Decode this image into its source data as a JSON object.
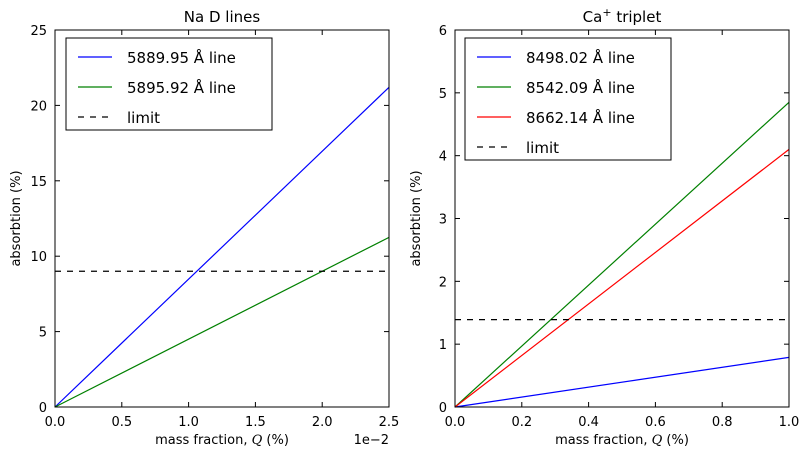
{
  "chart_data": [
    {
      "type": "line",
      "title": "Na D lines",
      "xlabel": "mass fraction, Q (%)",
      "xlabel_parts": {
        "pre": "mass fraction, ",
        "var": "Q",
        "post": " (%)"
      },
      "ylabel": "absorbtion (%)",
      "xlim": [
        0,
        0.025
      ],
      "ylim": [
        0,
        25
      ],
      "x_scale_label": "1e−2",
      "x_ticks": [
        0,
        0.005,
        0.01,
        0.015,
        0.02,
        0.025
      ],
      "x_tick_labels": [
        "0.0",
        "0.5",
        "1.0",
        "1.5",
        "2.0",
        "2.5"
      ],
      "y_ticks": [
        0,
        5,
        10,
        15,
        20,
        25
      ],
      "y_tick_labels": [
        "0",
        "5",
        "10",
        "15",
        "20",
        "25"
      ],
      "legend_position": "top-left",
      "series": [
        {
          "name": "5889.95 Å line",
          "color": "#0000ff",
          "style": "solid",
          "x": [
            0,
            0.025
          ],
          "y": [
            0,
            21.2
          ]
        },
        {
          "name": "5895.92 Å line",
          "color": "#008000",
          "style": "solid",
          "x": [
            0,
            0.025
          ],
          "y": [
            0,
            11.25
          ]
        },
        {
          "name": "limit",
          "color": "#000000",
          "style": "dashed",
          "x": [
            0,
            0.025
          ],
          "y": [
            9,
            9
          ]
        }
      ]
    },
    {
      "type": "line",
      "title": "Ca⁺ triplet",
      "title_parts": {
        "base": "Ca",
        "sup": "+",
        "rest": " triplet"
      },
      "xlabel": "mass fraction, Q (%)",
      "xlabel_parts": {
        "pre": "mass fraction, ",
        "var": "Q",
        "post": " (%)"
      },
      "ylabel": "absorbtion (%)",
      "xlim": [
        0,
        1
      ],
      "ylim": [
        0,
        6
      ],
      "x_ticks": [
        0,
        0.2,
        0.4,
        0.6,
        0.8,
        1.0
      ],
      "x_tick_labels": [
        "0.0",
        "0.2",
        "0.4",
        "0.6",
        "0.8",
        "1.0"
      ],
      "y_ticks": [
        0,
        1,
        2,
        3,
        4,
        5,
        6
      ],
      "y_tick_labels": [
        "0",
        "1",
        "2",
        "3",
        "4",
        "5",
        "6"
      ],
      "legend_position": "top-left",
      "series": [
        {
          "name": "8498.02 Å line",
          "color": "#0000ff",
          "style": "solid",
          "x": [
            0,
            1
          ],
          "y": [
            0,
            0.79
          ]
        },
        {
          "name": "8542.09 Å line",
          "color": "#008000",
          "style": "solid",
          "x": [
            0,
            1
          ],
          "y": [
            0,
            4.85
          ]
        },
        {
          "name": "8662.14 Å line",
          "color": "#ff0000",
          "style": "solid",
          "x": [
            0,
            1
          ],
          "y": [
            0,
            4.1
          ]
        },
        {
          "name": "limit",
          "color": "#000000",
          "style": "dashed",
          "x": [
            0,
            1
          ],
          "y": [
            1.39,
            1.39
          ]
        }
      ]
    }
  ]
}
